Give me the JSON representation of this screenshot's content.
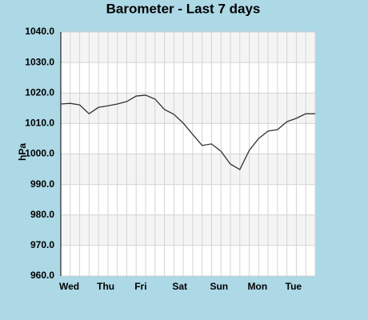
{
  "chart_data": {
    "type": "line",
    "title": "Barometer - Last 7 days",
    "y_label": "hPa",
    "categories": [
      "Wed",
      null,
      null,
      null,
      "Thu",
      null,
      null,
      null,
      "Fri",
      null,
      null,
      null,
      "Sat",
      null,
      null,
      null,
      "Sun",
      null,
      null,
      null,
      "Mon",
      null,
      null,
      null,
      "Tue",
      null,
      null,
      null
    ],
    "series": [
      {
        "name": "Barometer",
        "color": "#333333",
        "values": [
          1016.4,
          1016.6,
          1016.1,
          1013.2,
          1015.3,
          1015.8,
          1016.4,
          1017.2,
          1019.0,
          1019.3,
          1018.0,
          1014.6,
          1013.0,
          1010.1,
          1006.4,
          1002.8,
          1003.3,
          1000.9,
          996.7,
          994.9,
          1001.2,
          1005.1,
          1007.5,
          1008.0,
          1010.6,
          1011.7,
          1013.2,
          1013.2
        ]
      }
    ],
    "ylim": [
      960,
      1040
    ],
    "yticks": [
      {
        "value": 960,
        "label": "960.0"
      },
      {
        "value": 970,
        "label": "970.0"
      },
      {
        "value": 980,
        "label": "980.0"
      },
      {
        "value": 990,
        "label": "990.0"
      },
      {
        "value": 1000,
        "label": "1000.0"
      },
      {
        "value": 1010,
        "label": "1010.0"
      },
      {
        "value": 1020,
        "label": "1020.0"
      },
      {
        "value": 1030,
        "label": "1030.0"
      },
      {
        "value": 1040,
        "label": "1040.0"
      }
    ],
    "grid": true,
    "band_colors": [
      "#ffffff",
      "#f4f4f4"
    ]
  }
}
